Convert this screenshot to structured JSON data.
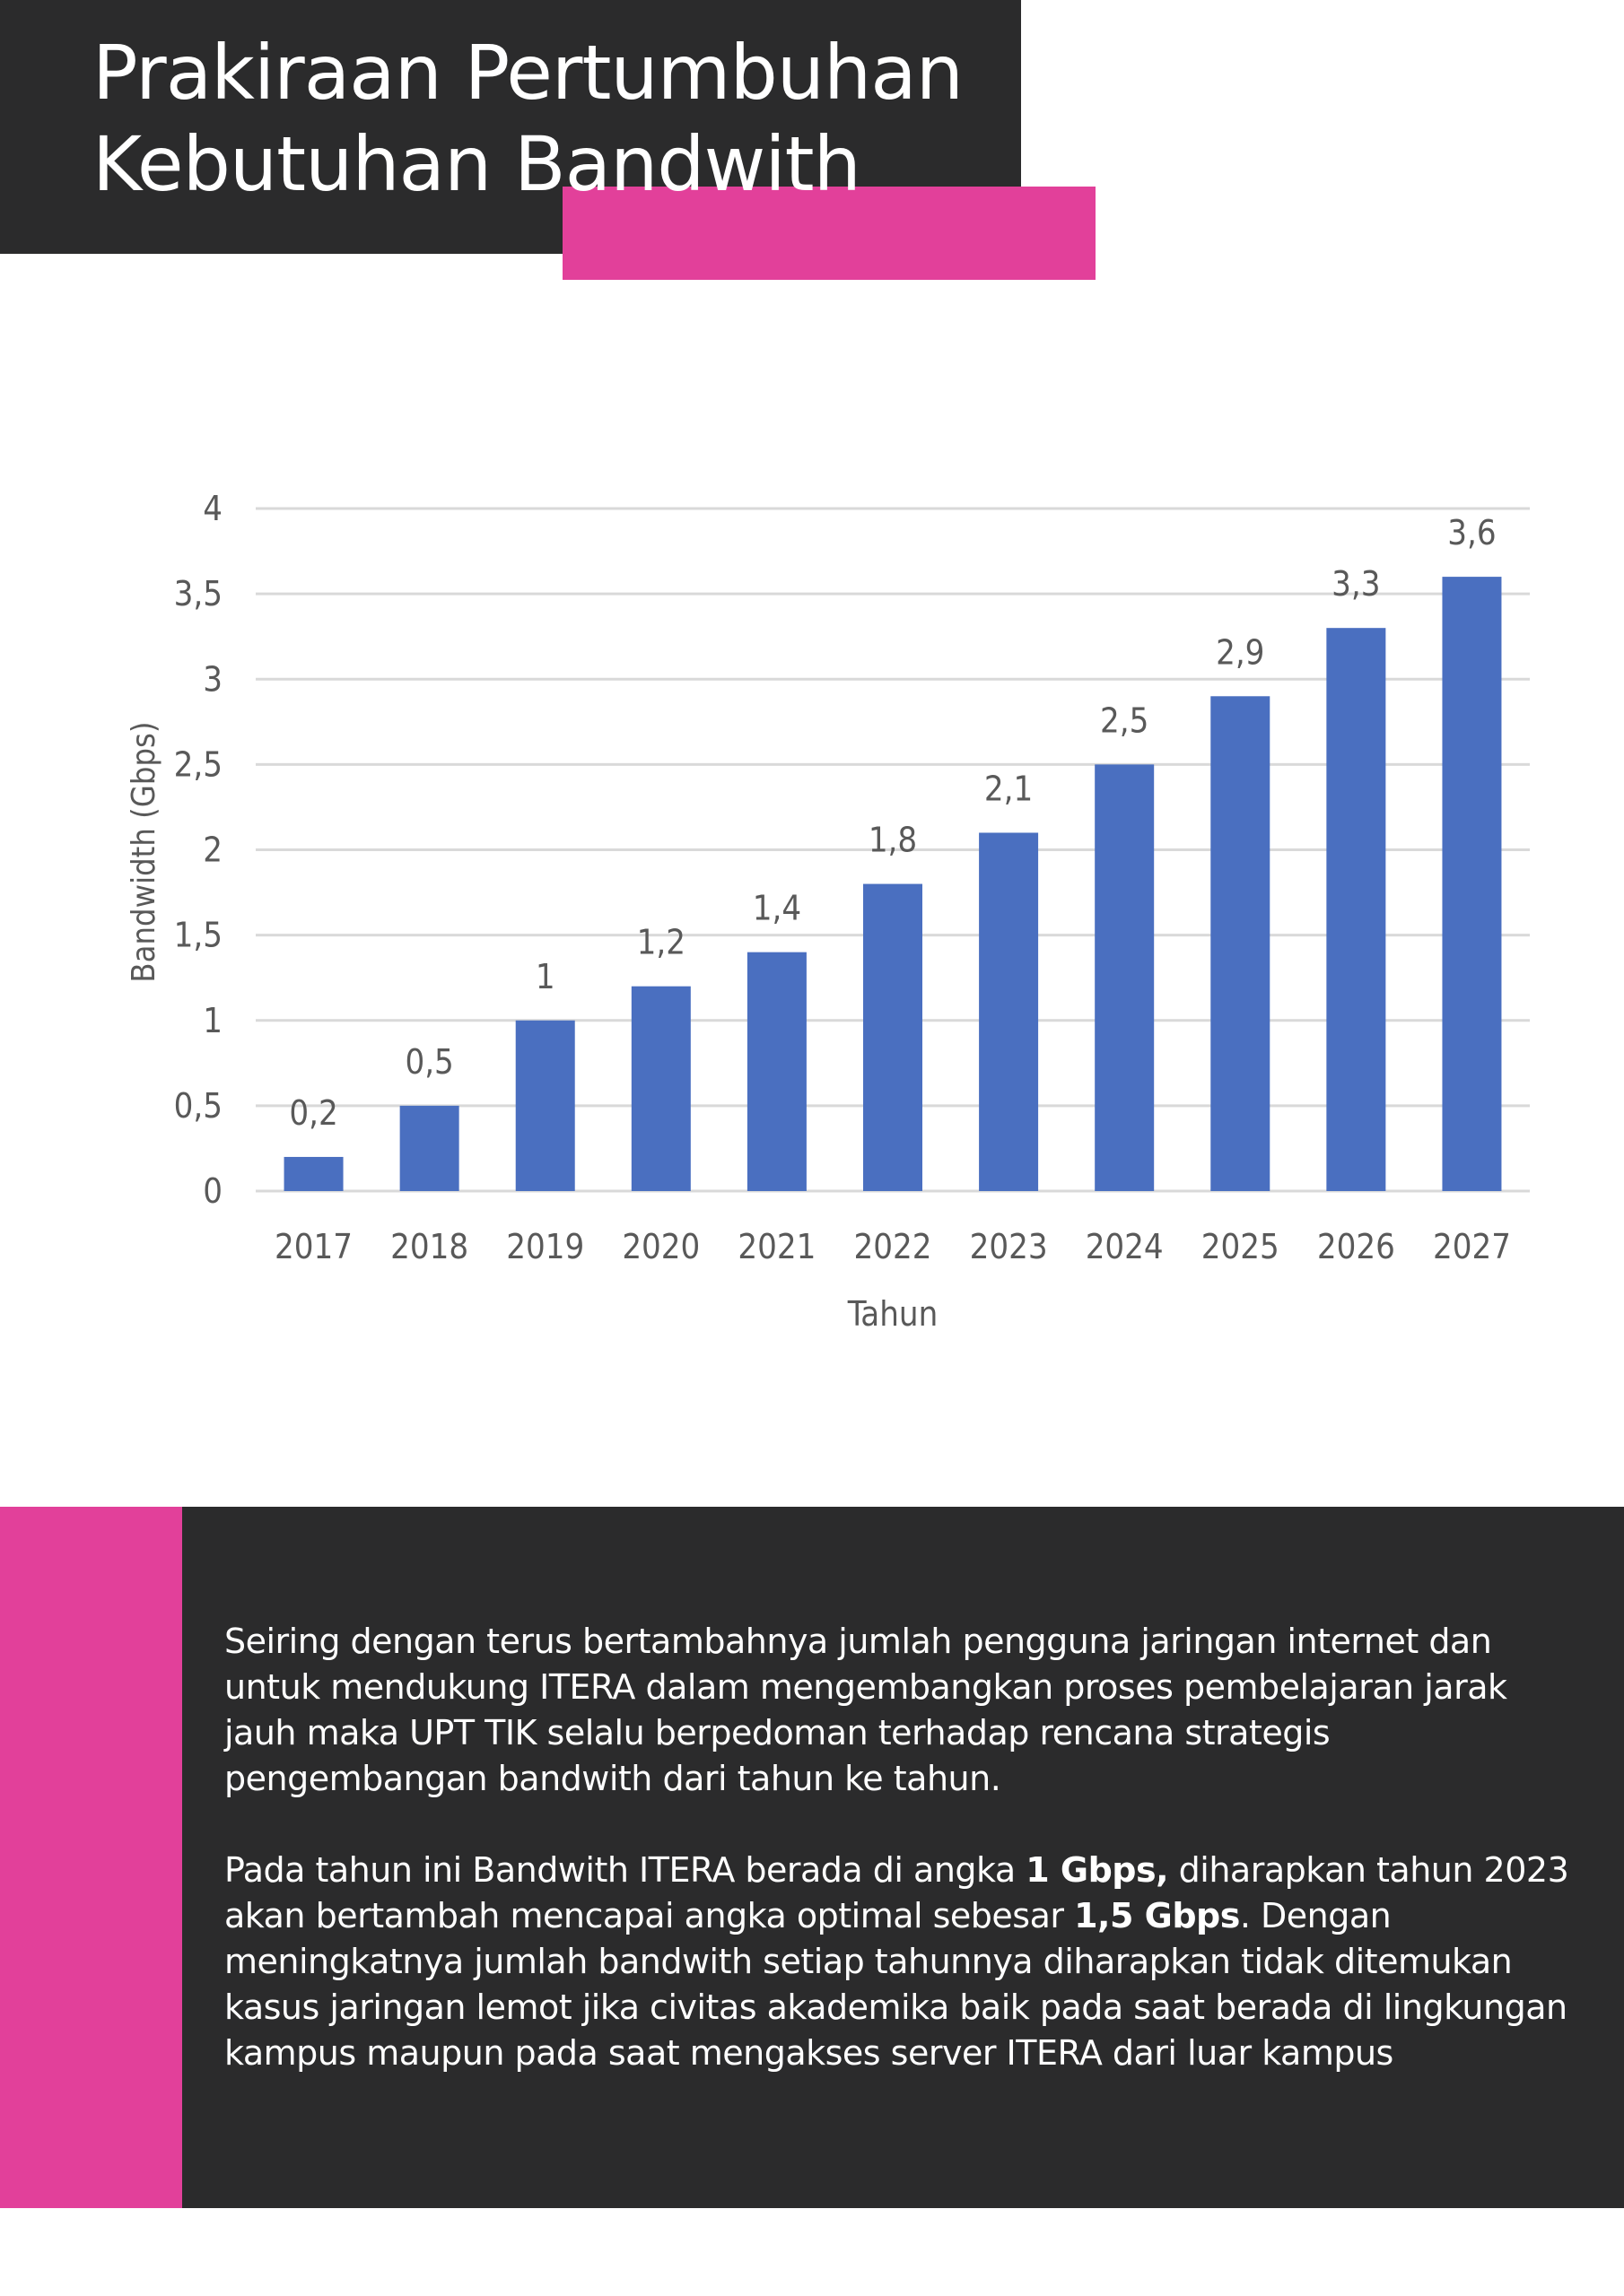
{
  "header": {
    "title_line1": "Prakiraan Pertumbuhan",
    "title_line2": "Kebutuhan Bandwith"
  },
  "colors": {
    "dark": "#2b2b2c",
    "pink": "#e2409a",
    "bar": "#4a6fc0",
    "grid": "#d9d9d9",
    "axis_text": "#595959"
  },
  "chart_data": {
    "type": "bar",
    "xlabel": "Tahun",
    "ylabel": "Bandwidth (Gbps)",
    "categories": [
      "2017",
      "2018",
      "2019",
      "2020",
      "2021",
      "2022",
      "2023",
      "2024",
      "2025",
      "2026",
      "2027"
    ],
    "values": [
      0.2,
      0.5,
      1,
      1.2,
      1.4,
      1.8,
      2.1,
      2.5,
      2.9,
      3.3,
      3.6
    ],
    "data_labels": [
      "0,2",
      "0,5",
      "1",
      "1,2",
      "1,4",
      "1,8",
      "2,1",
      "2,5",
      "2,9",
      "3,3",
      "3,6"
    ],
    "yticks": [
      0,
      0.5,
      1,
      1.5,
      2,
      2.5,
      3,
      3.5,
      4
    ],
    "ytick_labels": [
      "0",
      "0,5",
      "1",
      "1,5",
      "2",
      "2,5",
      "3",
      "3,5",
      "4"
    ],
    "ylim": [
      0,
      4
    ],
    "grid": true,
    "legend": "none"
  },
  "body": {
    "paragraph1": "Seiring dengan terus bertambahnya jumlah pengguna jaringan internet dan untuk mendukung ITERA dalam mengembangkan proses pembelajaran jarak jauh maka UPT TIK selalu berpedoman terhadap rencana strategis pengembangan bandwith dari tahun ke tahun.",
    "p2_text1": "Pada tahun ini Bandwith ITERA berada di angka ",
    "p2_bold1": "1 Gbps,",
    "p2_text2": " diharapkan tahun 2023 akan bertambah mencapai angka optimal sebesar ",
    "p2_bold2": "1,5 Gbps",
    "p2_text3": ". Dengan meningkatnya jumlah bandwith setiap tahunnya diharapkan tidak ditemukan kasus jaringan lemot jika civitas akademika baik pada saat berada di lingkungan kampus maupun pada saat mengakses server ITERA dari luar kampus"
  }
}
